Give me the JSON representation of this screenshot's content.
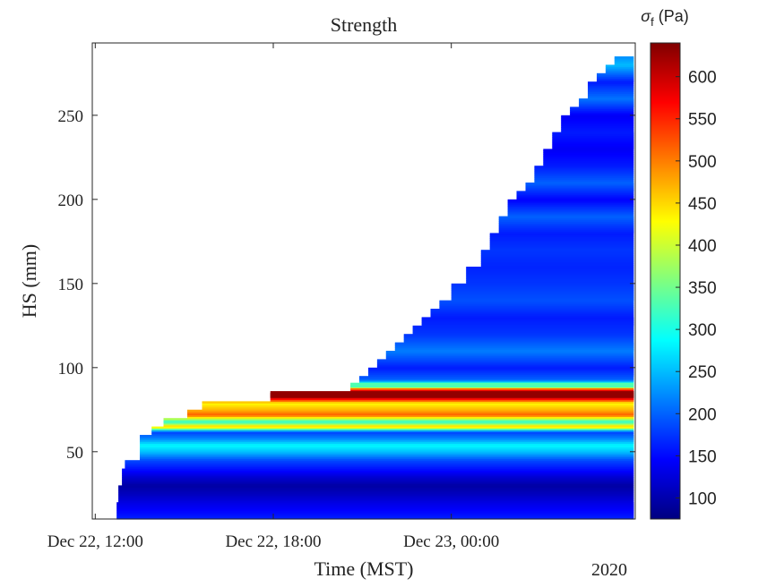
{
  "chart_data": {
    "type": "heatmap",
    "title": "Strength",
    "xlabel": "Time (MST)",
    "ylabel": "HS (mm)",
    "year_label": "2020",
    "x_tick_labels": [
      "Dec 22, 12:00",
      "Dec 22, 18:00",
      "Dec 23, 00:00"
    ],
    "x_ticks_hours": [
      12,
      18,
      24
    ],
    "xlim_hours": [
      11.9,
      30.2
    ],
    "y_ticks": [
      50,
      100,
      150,
      200,
      250
    ],
    "ylim": [
      10,
      293
    ],
    "colorbar": {
      "label": "σ",
      "label_sub": "f",
      "label_unit": "(Pa)",
      "ticks": [
        100,
        150,
        200,
        250,
        300,
        350,
        400,
        450,
        500,
        550,
        600
      ],
      "range": [
        75,
        640
      ],
      "colormap": "jet"
    },
    "surface_height": {
      "time_hours": [
        12.6,
        12.72,
        12.78,
        12.9,
        13.0,
        13.5,
        13.9,
        14.3,
        15.1,
        15.6,
        17.9,
        20.6,
        20.9,
        21.2,
        21.5,
        21.8,
        22.1,
        22.4,
        22.7,
        23.0,
        23.3,
        23.6,
        24.0,
        24.5,
        25.0,
        25.3,
        25.6,
        25.9,
        26.2,
        26.5,
        26.8,
        27.1,
        27.4,
        27.7,
        28.0,
        28.3,
        28.6,
        28.9,
        29.2,
        29.5,
        30.2
      ],
      "hs_mm": [
        10,
        20,
        30,
        40,
        45,
        60,
        65,
        70,
        75,
        80,
        85,
        90,
        95,
        100,
        105,
        110,
        115,
        120,
        125,
        130,
        135,
        140,
        150,
        160,
        170,
        180,
        190,
        200,
        205,
        210,
        220,
        230,
        240,
        250,
        255,
        260,
        270,
        275,
        280,
        285,
        290
      ]
    },
    "strength_profile": {
      "hs_mm": [
        10,
        14,
        20,
        25,
        30,
        35,
        40,
        45,
        50,
        54,
        58,
        62,
        65,
        68,
        72,
        75,
        79,
        82,
        84,
        86,
        88,
        90,
        93,
        100,
        110,
        120,
        130,
        140,
        150,
        160,
        170,
        180,
        190,
        200,
        210,
        220,
        230,
        240,
        250,
        260,
        270,
        280,
        290
      ],
      "strength_pa": [
        165,
        150,
        130,
        110,
        95,
        120,
        155,
        185,
        250,
        285,
        220,
        180,
        470,
        300,
        520,
        470,
        430,
        590,
        630,
        610,
        480,
        330,
        200,
        160,
        215,
        175,
        160,
        190,
        175,
        165,
        175,
        160,
        200,
        145,
        200,
        160,
        140,
        160,
        140,
        210,
        160,
        250,
        200
      ]
    },
    "events": [
      {
        "start_hours": 17.9,
        "hs_range": [
          82,
          86
        ],
        "strength_pa": 630
      },
      {
        "start_hours": 20.6,
        "hs_range": [
          88,
          91
        ],
        "strength_pa": 330
      }
    ]
  }
}
